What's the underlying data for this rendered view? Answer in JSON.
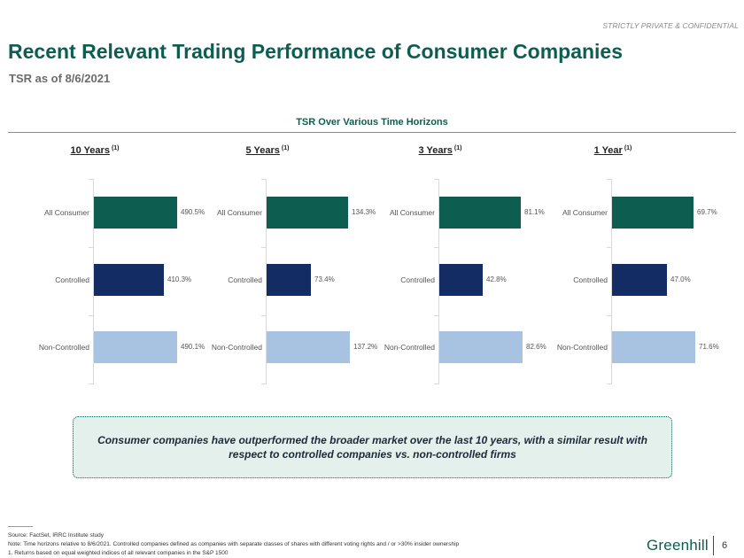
{
  "header": {
    "confidential": "STRICTLY PRIVATE & CONFIDENTIAL",
    "title": "Recent Relevant Trading Performance of Consumer Companies",
    "subtitle": "TSR as of 8/6/2021"
  },
  "colors": {
    "all_consumer": "#0d5e50",
    "controlled": "#142c64",
    "non_controlled": "#a7c3e1"
  },
  "chart_data": {
    "type": "bar",
    "orientation": "horizontal",
    "title": "TSR Over Various Time Horizons",
    "categories": [
      "All Consumer",
      "Controlled",
      "Non-Controlled"
    ],
    "panels": [
      {
        "title": "10 Years",
        "note": "(1)",
        "values": [
          490.5,
          410.3,
          490.1
        ],
        "labels": [
          "490.5%",
          "410.3%",
          "490.1%"
        ]
      },
      {
        "title": "5 Years",
        "note": "(1)",
        "values": [
          134.3,
          73.4,
          137.2
        ],
        "labels": [
          "134.3%",
          "73.4%",
          "137.2%"
        ]
      },
      {
        "title": "3 Years",
        "note": "(1)",
        "values": [
          81.1,
          42.8,
          82.6
        ],
        "labels": [
          "81.1%",
          "42.8%",
          "82.6%"
        ]
      },
      {
        "title": "1 Year",
        "note": "(1)",
        "values": [
          69.7,
          47.0,
          71.6
        ],
        "labels": [
          "69.7%",
          "47.0%",
          "71.6%"
        ]
      }
    ]
  },
  "callout": {
    "text": "Consumer companies have outperformed the broader market over the last 10 years, with a similar result with respect to controlled companies vs. non-controlled firms"
  },
  "footer": {
    "source": "Source: FactSet, IRRC Institute study",
    "note": "Note: Time horizons relative to 8/6/2021. Controlled companies defined as companies with separate classes of shares with different voting rights and / or >30% insider ownership",
    "footnote": "1. Returns based on equal weighted indices of all relevant companies in the S&P 1500",
    "logo": "Greenhill",
    "page": "6"
  }
}
